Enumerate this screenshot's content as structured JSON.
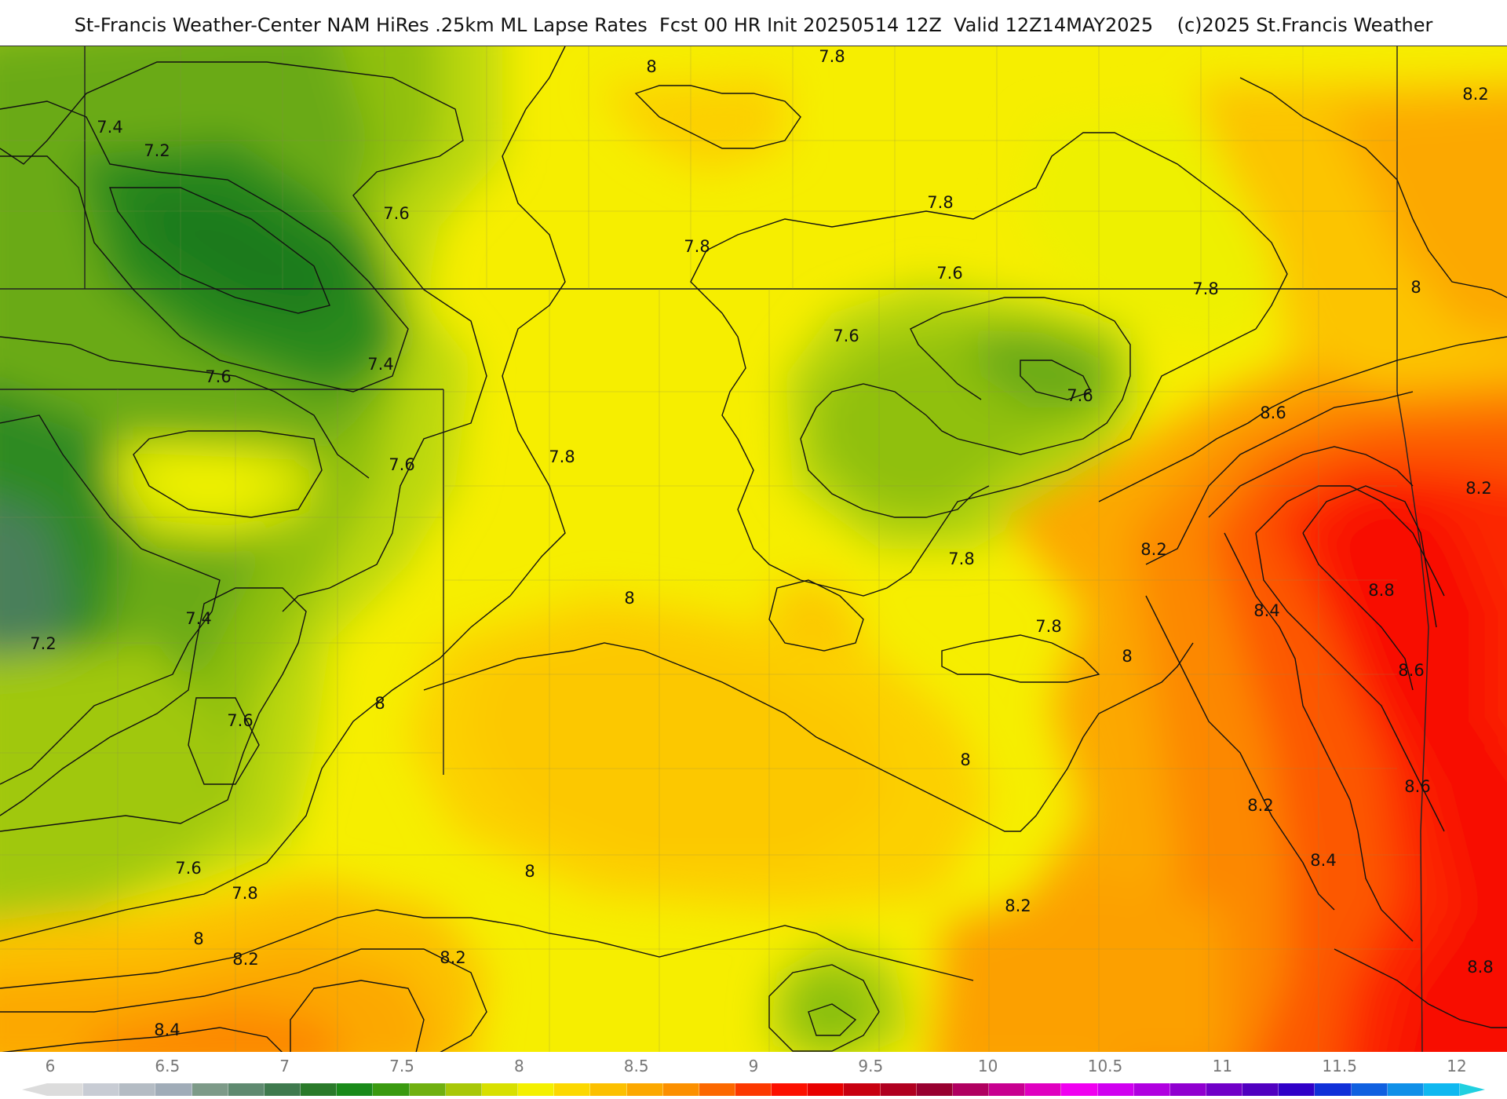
{
  "header": {
    "title": "St-Francis Weather-Center NAM HiRes .25km ML Lapse Rates  Fcst 00 HR Init 20250514 12Z  Valid 12Z14MAY2025    (c)2025 St.Francis Weather"
  },
  "colorbar": {
    "ticks": [
      "6",
      "6.5",
      "7",
      "7.5",
      "8",
      "8.5",
      "9",
      "9.5",
      "10",
      "10.5",
      "11",
      "11.5",
      "12"
    ],
    "colors": [
      "#dcdcdc",
      "#c8ccd4",
      "#b4bcc4",
      "#a0acb8",
      "#7d9a88",
      "#5f8a70",
      "#3f7a4e",
      "#2a7a2a",
      "#1a8a1a",
      "#3a9a10",
      "#70b010",
      "#a8c808",
      "#d8e000",
      "#f4f000",
      "#fcd800",
      "#fcc000",
      "#fca800",
      "#fc9000",
      "#fc6800",
      "#fc3800",
      "#fc1000",
      "#e80000",
      "#c80010",
      "#b00020",
      "#980030",
      "#b00060",
      "#c80090",
      "#e000c0",
      "#f000f0",
      "#d000f0",
      "#b000e0",
      "#9000d0",
      "#7000c8",
      "#5000c0",
      "#3000c8",
      "#1030d8",
      "#1060e0",
      "#1090e8",
      "#10b8f0"
    ],
    "tip_left_color": "#dcdcdc",
    "tip_right_color": "#20d0e0"
  },
  "map": {
    "contour_labels": [
      "7.4",
      "7.2",
      "7.6",
      "7.6",
      "7.4",
      "7.6",
      "7.4",
      "7.2",
      "7.6",
      "7.6",
      "7.8",
      "8",
      "8.2",
      "8.4",
      "8.2",
      "8",
      "8",
      "7.8",
      "7.8",
      "7.8",
      "7.6",
      "7.6",
      "7.6",
      "7.8",
      "7.8",
      "7.8",
      "8",
      "8",
      "8",
      "8",
      "8.2",
      "8.2",
      "8.2",
      "8.4",
      "8.4",
      "8.8",
      "8.6",
      "8.6",
      "8.6",
      "8.8",
      "8.2",
      "7.8",
      "8",
      "8.2"
    ]
  }
}
